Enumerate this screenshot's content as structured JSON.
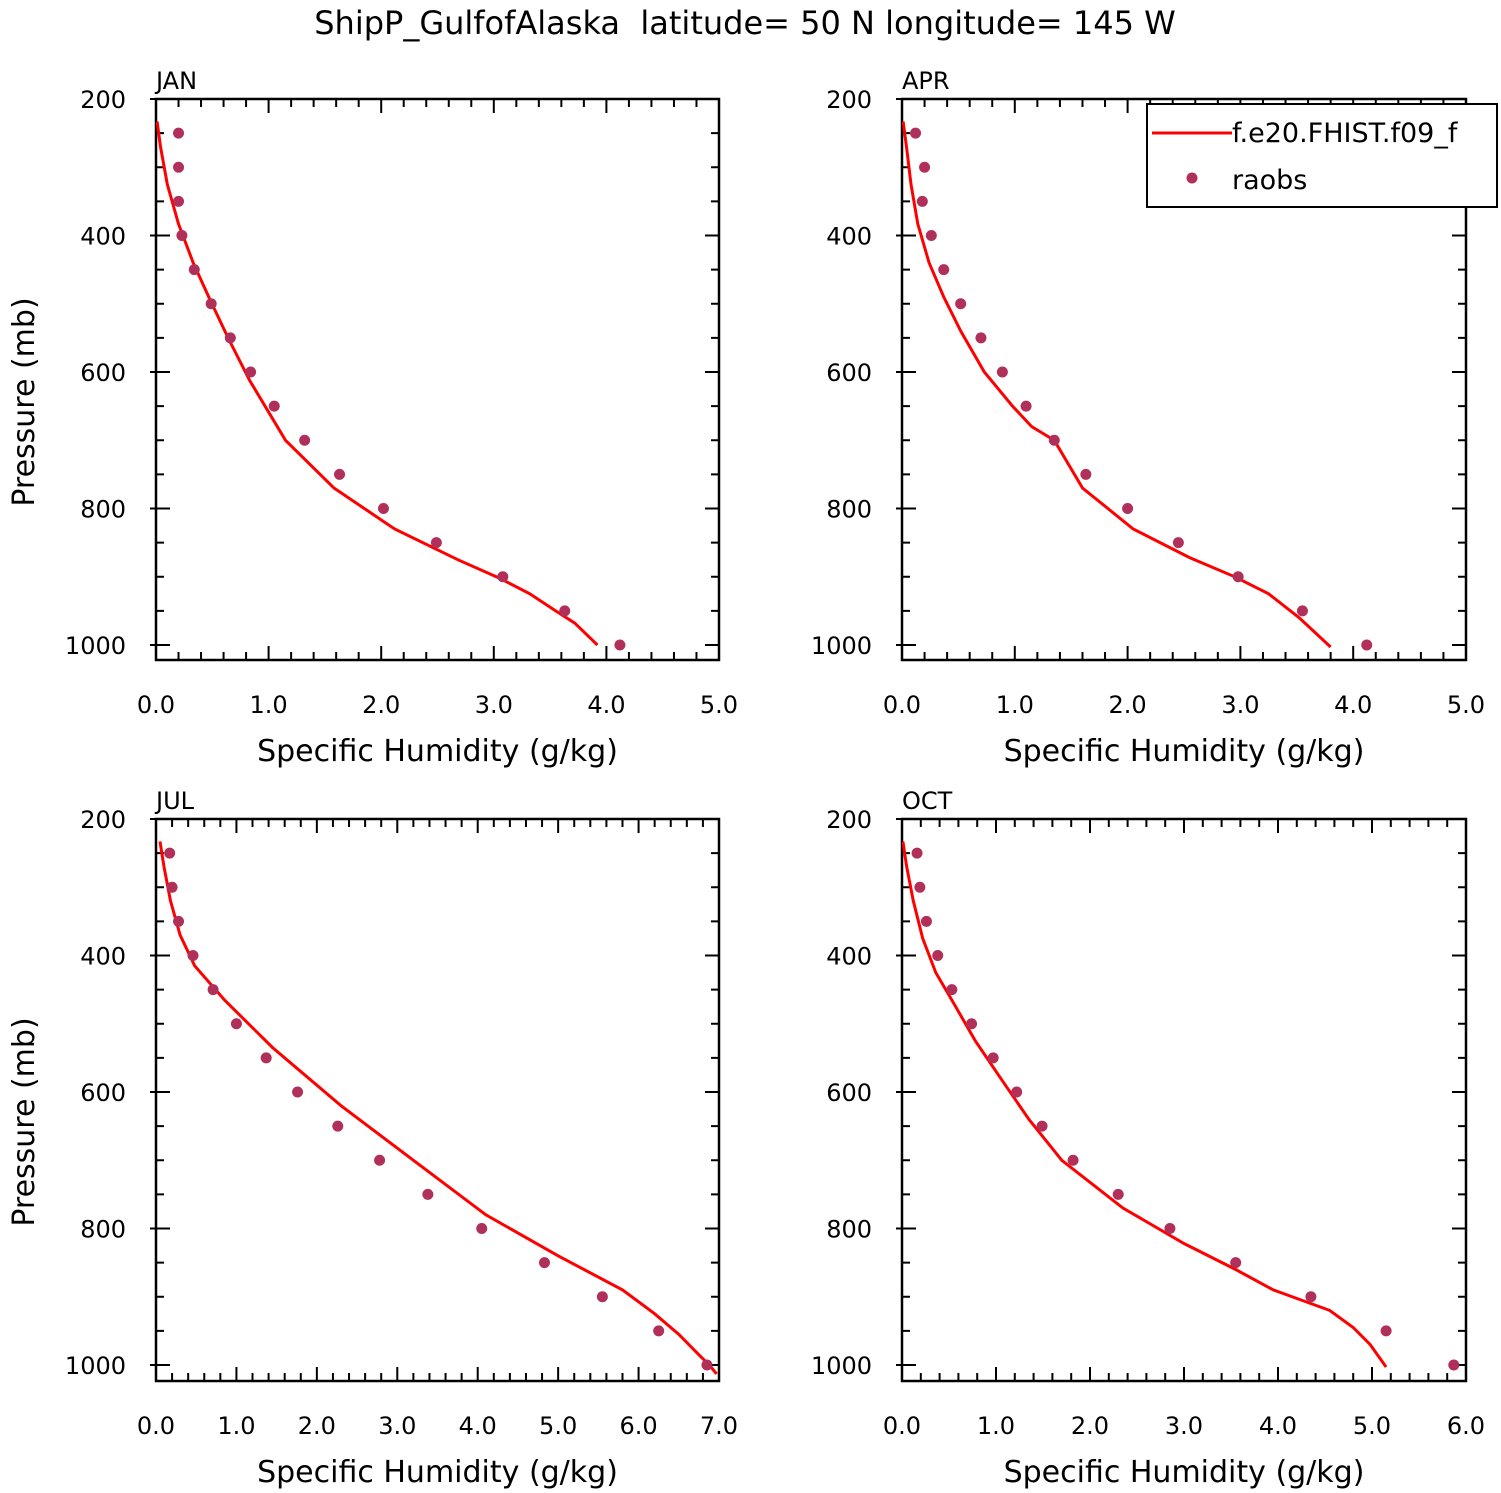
{
  "figure": {
    "title": "ShipP_GulfofAlaska  latitude= 50 N longitude= 145 W",
    "legend": {
      "model_label": "f.e20.FHIST.f09_f",
      "obs_label": "raobs",
      "model_color": "#ff0000",
      "obs_color": "#b0305a"
    }
  },
  "chart_data": [
    {
      "type": "line",
      "panel": "JAN",
      "xlabel": "Specific Humidity (g/kg)",
      "ylabel": "Pressure (mb)",
      "xlim": [
        0,
        5
      ],
      "ylim": [
        200,
        1000
      ],
      "y_inverted": true,
      "xticks": [
        "0.0",
        "1.0",
        "2.0",
        "3.0",
        "4.0",
        "5.0"
      ],
      "yticks": [
        "200",
        "400",
        "600",
        "800",
        "1000"
      ],
      "legend": false,
      "series": [
        {
          "name": "f.e20.FHIST.f09_f",
          "style": "line",
          "x": [
            0.01,
            0.04,
            0.1,
            0.2,
            0.33,
            0.48,
            0.64,
            0.83,
            1.15,
            1.58,
            2.12,
            2.68,
            3.05,
            3.32,
            3.55,
            3.72,
            3.92
          ],
          "y": [
            233,
            270,
            325,
            383,
            440,
            494,
            550,
            612,
            700,
            770,
            830,
            875,
            902,
            925,
            950,
            968,
            1000
          ]
        },
        {
          "name": "raobs",
          "style": "points",
          "x": [
            0.2,
            0.2,
            0.2,
            0.23,
            0.34,
            0.49,
            0.66,
            0.84,
            1.05,
            1.32,
            1.63,
            2.02,
            2.49,
            3.08,
            3.63,
            4.12
          ],
          "y": [
            250,
            300,
            350,
            400,
            450,
            500,
            550,
            600,
            650,
            700,
            750,
            800,
            850,
            900,
            950,
            1000
          ]
        }
      ]
    },
    {
      "type": "line",
      "panel": "APR",
      "xlabel": "Specific Humidity (g/kg)",
      "ylabel": "",
      "xlim": [
        0,
        5
      ],
      "ylim": [
        200,
        1000
      ],
      "y_inverted": true,
      "xticks": [
        "0.0",
        "1.0",
        "2.0",
        "3.0",
        "4.0",
        "5.0"
      ],
      "yticks": [
        "200",
        "400",
        "600",
        "800",
        "1000"
      ],
      "legend": true,
      "series": [
        {
          "name": "f.e20.FHIST.f09_f",
          "style": "line",
          "x": [
            0.01,
            0.04,
            0.08,
            0.14,
            0.24,
            0.37,
            0.52,
            0.73,
            0.98,
            1.15,
            1.35,
            1.6,
            2.05,
            2.55,
            2.95,
            3.25,
            3.52,
            3.8
          ],
          "y": [
            233,
            270,
            325,
            383,
            440,
            490,
            540,
            600,
            650,
            680,
            700,
            770,
            830,
            872,
            900,
            925,
            960,
            1003
          ]
        },
        {
          "name": "raobs",
          "style": "points",
          "x": [
            0.12,
            0.2,
            0.18,
            0.26,
            0.37,
            0.52,
            0.7,
            0.89,
            1.1,
            1.35,
            1.63,
            2.0,
            2.45,
            2.98,
            3.55,
            4.12
          ],
          "y": [
            250,
            300,
            350,
            400,
            450,
            500,
            550,
            600,
            650,
            700,
            750,
            800,
            850,
            900,
            950,
            1000
          ]
        }
      ]
    },
    {
      "type": "line",
      "panel": "JUL",
      "xlabel": "Specific Humidity (g/kg)",
      "ylabel": "Pressure (mb)",
      "xlim": [
        0,
        7
      ],
      "ylim": [
        200,
        1000
      ],
      "y_inverted": true,
      "xticks": [
        "0.0",
        "1.0",
        "2.0",
        "3.0",
        "4.0",
        "5.0",
        "6.0",
        "7.0"
      ],
      "yticks": [
        "200",
        "400",
        "600",
        "800",
        "1000"
      ],
      "legend": false,
      "series": [
        {
          "name": "f.e20.FHIST.f09_f",
          "style": "line",
          "x": [
            0.05,
            0.1,
            0.18,
            0.3,
            0.48,
            0.85,
            1.45,
            2.3,
            3.2,
            4.1,
            5.0,
            5.8,
            6.2,
            6.5,
            6.75,
            6.88,
            6.97
          ],
          "y": [
            233,
            270,
            320,
            370,
            415,
            465,
            535,
            620,
            700,
            780,
            840,
            890,
            925,
            955,
            985,
            1000,
            1013
          ]
        },
        {
          "name": "raobs",
          "style": "points",
          "x": [
            0.17,
            0.2,
            0.28,
            0.46,
            0.71,
            1.0,
            1.37,
            1.76,
            2.26,
            2.78,
            3.38,
            4.05,
            4.83,
            5.55,
            6.25,
            6.85
          ],
          "y": [
            250,
            300,
            350,
            400,
            450,
            500,
            550,
            600,
            650,
            700,
            750,
            800,
            850,
            900,
            950,
            1000
          ]
        }
      ]
    },
    {
      "type": "line",
      "panel": "OCT",
      "xlabel": "Specific Humidity (g/kg)",
      "ylabel": "",
      "xlim": [
        0,
        6
      ],
      "ylim": [
        200,
        1000
      ],
      "y_inverted": true,
      "xticks": [
        "0.0",
        "1.0",
        "2.0",
        "3.0",
        "4.0",
        "5.0",
        "6.0"
      ],
      "yticks": [
        "200",
        "400",
        "600",
        "800",
        "1000"
      ],
      "legend": false,
      "series": [
        {
          "name": "f.e20.FHIST.f09_f",
          "style": "line",
          "x": [
            0.01,
            0.05,
            0.12,
            0.22,
            0.36,
            0.55,
            0.78,
            1.05,
            1.35,
            1.7,
            2.35,
            3.0,
            3.55,
            3.95,
            4.55,
            4.8,
            4.98,
            5.15
          ],
          "y": [
            233,
            270,
            320,
            375,
            425,
            470,
            525,
            580,
            640,
            700,
            770,
            822,
            860,
            890,
            920,
            945,
            970,
            1003
          ]
        },
        {
          "name": "raobs",
          "style": "points",
          "x": [
            0.16,
            0.19,
            0.26,
            0.38,
            0.53,
            0.74,
            0.97,
            1.22,
            1.49,
            1.82,
            2.3,
            2.85,
            3.55,
            4.35,
            5.15,
            5.87
          ],
          "y": [
            250,
            300,
            350,
            400,
            450,
            500,
            550,
            600,
            650,
            700,
            750,
            800,
            850,
            900,
            950,
            1000
          ]
        }
      ]
    }
  ]
}
